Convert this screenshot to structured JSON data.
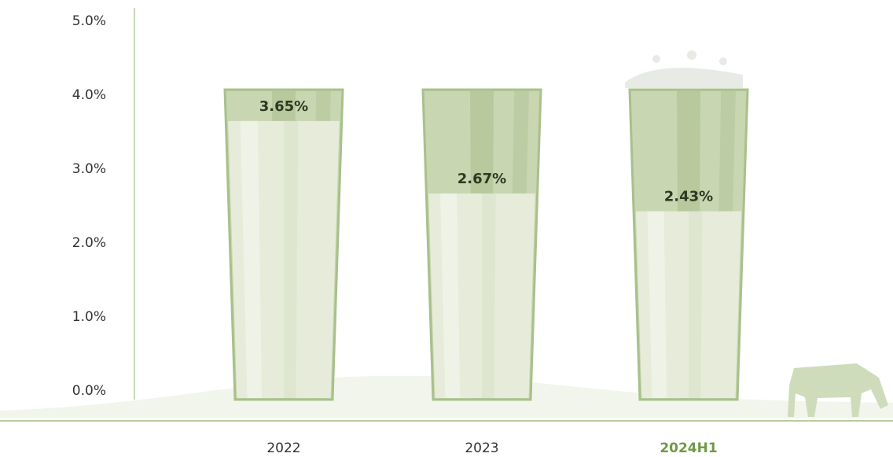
{
  "chart_data": {
    "type": "bar",
    "categories": [
      "2022",
      "2023",
      "2024H1"
    ],
    "values": [
      3.65,
      2.67,
      2.43
    ],
    "value_labels": [
      "3.65%",
      "2.67%",
      "2.43%"
    ],
    "color": "#e6ecd9",
    "ylim": [
      0,
      5
    ],
    "yticks": [
      {
        "value": 0,
        "label": "0.0%"
      },
      {
        "value": 1,
        "label": "1.0%"
      },
      {
        "value": 2,
        "label": "2.0%"
      },
      {
        "value": 3,
        "label": "3.0%"
      },
      {
        "value": 4,
        "label": "4.0%"
      },
      {
        "value": 5,
        "label": "5.0%"
      }
    ]
  }
}
